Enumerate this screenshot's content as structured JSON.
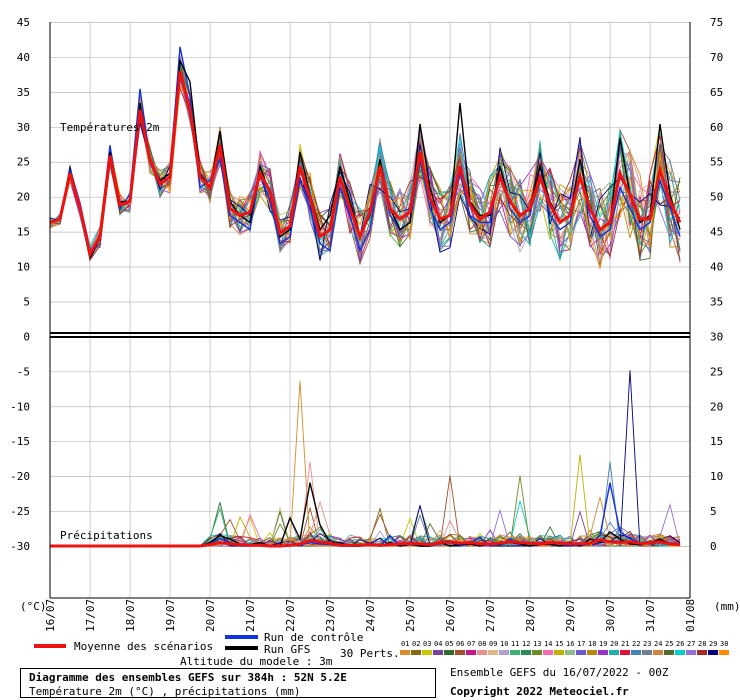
{
  "colors": {
    "mean": "#ee1111",
    "control": "#1133dd",
    "gfs": "#000000",
    "grid": "#bbbbbb",
    "members": [
      "#d98c2b",
      "#8b6914",
      "#c8c800",
      "#7b3fa0",
      "#2f6b2f",
      "#a0522d",
      "#c71585",
      "#e89090",
      "#deb887",
      "#b0a0d0",
      "#3cb371",
      "#2e8b57",
      "#6b8e23",
      "#ff69b4",
      "#c0b000",
      "#8fbc8f",
      "#6a5acd",
      "#b8860b",
      "#9932cc",
      "#20b2aa",
      "#dc143c",
      "#4682b4",
      "#708090",
      "#cd853f",
      "#556b2f",
      "#00ced1",
      "#9370db",
      "#a52a2a",
      "#000080",
      "#ff8c00"
    ]
  },
  "header": {
    "title": "Diagramme des ensembles GEFS sur 384h : 52N 5.2E",
    "subtitle": "Température 2m (°C) , précipitations (mm)",
    "run": "Ensemble GEFS du 16/07/2022 - 00Z",
    "copyright": "Copyright 2022 Meteociel.fr",
    "altitude": "Altitude du modele : 3m"
  },
  "legend": {
    "mean": "Moyenne des scénarios",
    "control": "Run de contrôle",
    "gfs": "Run GFS",
    "perts": "30 Perts.",
    "members": [
      "01",
      "02",
      "03",
      "04",
      "05",
      "06",
      "07",
      "08",
      "09",
      "10",
      "11",
      "12",
      "13",
      "14",
      "15",
      "16",
      "17",
      "18",
      "19",
      "20",
      "21",
      "22",
      "23",
      "24",
      "25",
      "26",
      "27",
      "28",
      "29",
      "30"
    ]
  },
  "chart_data": {
    "type": "line",
    "subplots": [
      {
        "label": "Températures 2m",
        "unit": "(°C)"
      },
      {
        "label": "Précipitations",
        "unit": "(mm)"
      }
    ],
    "x_tick_labels": [
      "16/07",
      "17/07",
      "18/07",
      "19/07",
      "20/07",
      "21/07",
      "22/07",
      "23/07",
      "24/07",
      "25/07",
      "26/07",
      "27/07",
      "28/07",
      "29/07",
      "30/07",
      "31/07",
      "01/08"
    ],
    "left_axis_ticks": [
      "45",
      "40",
      "35",
      "30",
      "25",
      "20",
      "15",
      "10",
      "5",
      "0",
      "-5",
      "-10",
      "-15",
      "-20",
      "-25",
      "-30"
    ],
    "right_axis_ticks": [
      "75",
      "70",
      "65",
      "60",
      "55",
      "50",
      "45",
      "40",
      "35",
      "30",
      "25",
      "20",
      "15",
      "10",
      "5",
      "0"
    ],
    "left_axis_label": "(°C)",
    "right_axis_label": "(mm)",
    "x_unit": "hours",
    "x_step_h": 6,
    "temp_mean": [
      16,
      16.5,
      23,
      18,
      11.5,
      14,
      25.5,
      18.5,
      19,
      32,
      25,
      21.5,
      22.5,
      37.5,
      32,
      22.5,
      21,
      27,
      18,
      17,
      17.5,
      23,
      20.5,
      14.5,
      15.5,
      24,
      19.5,
      14,
      15,
      22.5,
      18,
      14,
      17.5,
      24,
      18,
      16.5,
      17.5,
      26,
      19.5,
      16.5,
      17,
      24,
      18.5,
      16.5,
      17.5,
      22.5,
      19,
      17,
      18,
      22.5,
      18.5,
      16,
      17,
      22.5,
      18,
      15,
      16,
      23,
      20,
      16.5,
      16.5,
      23.5,
      19,
      16
    ],
    "temp_control": [
      16,
      16.5,
      23.5,
      18.5,
      11,
      14.5,
      27,
      18,
      20,
      35,
      25,
      22,
      23,
      41,
      34,
      21,
      22,
      25,
      17,
      16,
      15,
      23,
      19,
      13,
      14,
      22,
      18,
      13,
      12,
      21,
      17,
      12,
      15,
      24,
      17,
      15,
      16,
      25,
      18,
      15,
      16,
      23,
      17,
      16,
      16,
      24,
      18,
      16,
      17,
      24,
      17,
      15,
      16,
      23,
      17,
      14,
      15,
      21,
      18,
      15,
      16,
      22,
      18,
      14
    ],
    "temp_gfs": [
      16,
      16.5,
      23,
      18,
      11,
      14,
      26,
      19,
      19,
      33,
      25,
      22,
      23,
      39,
      36,
      23,
      21,
      29,
      19,
      17,
      16,
      24,
      20,
      14,
      15,
      26,
      20,
      15,
      17,
      24,
      19,
      14,
      17,
      25,
      18,
      15,
      16,
      30,
      21,
      16,
      17,
      33,
      19,
      17,
      17,
      24,
      19,
      17,
      18,
      24,
      19,
      16,
      17,
      25,
      18,
      15,
      16,
      28,
      20,
      16,
      17,
      30,
      20,
      15
    ],
    "temp_members_spread": [
      1,
      1,
      1.5,
      1.5,
      1.5,
      2,
      2,
      2,
      2,
      2.5,
      2.5,
      2.5,
      3,
      3,
      3,
      3,
      3,
      3.5,
      3.5,
      3.5,
      3.5,
      4,
      4,
      4,
      4,
      4,
      4.5,
      4.5,
      4.5,
      4.5,
      5,
      5,
      5,
      5,
      5,
      5.5,
      5.5,
      5.5,
      5.5,
      6,
      6,
      6,
      6,
      6,
      6.5,
      6.5,
      6.5,
      6.5,
      7,
      7,
      7,
      7,
      7,
      7.5,
      7.5,
      7.5,
      7.5,
      8,
      8,
      8,
      8,
      8,
      8.5,
      8.5
    ],
    "precip_mean": [
      0,
      0,
      0,
      0,
      0,
      0,
      0,
      0,
      0,
      0,
      0,
      0,
      0,
      0,
      0,
      0,
      0.2,
      0.5,
      0.3,
      0.2,
      0.1,
      0.1,
      0,
      0,
      0.1,
      0.3,
      0.8,
      0.6,
      0.4,
      0.1,
      0.1,
      0.1,
      0.2,
      0.1,
      0.2,
      0.3,
      0.4,
      0.3,
      0.2,
      0.5,
      0.6,
      0.4,
      0.5,
      0.3,
      0.3,
      0.4,
      0.6,
      0.5,
      0.4,
      0.3,
      0.5,
      0.4,
      0.3,
      0.3,
      0.4,
      0.9,
      0.6,
      0.5,
      0.6,
      0.4,
      0.5,
      0.6,
      0.3,
      0.2
    ],
    "precip_control": [
      0,
      0,
      0,
      0,
      0,
      0,
      0,
      0,
      0,
      0,
      0,
      0,
      0,
      0,
      0,
      0,
      0.5,
      1,
      0.5,
      0,
      0,
      0.3,
      0,
      0,
      0,
      0.2,
      0.5,
      0.3,
      0.2,
      0,
      0,
      0,
      0.3,
      0,
      1.5,
      0,
      0.2,
      0,
      0,
      0.3,
      0.5,
      0,
      0.4,
      0,
      0.3,
      0.2,
      1,
      0.3,
      0,
      0.5,
      0.2,
      0,
      0.2,
      0,
      0.3,
      1.5,
      9,
      2,
      1,
      0.5,
      0.3,
      0.5,
      0.5,
      0.2
    ],
    "precip_gfs": [
      0,
      0,
      0,
      0,
      0,
      0,
      0,
      0,
      0,
      0,
      0,
      0,
      0,
      0,
      0,
      0,
      0.5,
      1.5,
      1,
      0.3,
      0.2,
      0.5,
      0,
      0,
      4,
      1,
      9,
      3,
      0.5,
      0.5,
      0,
      0,
      0.2,
      0,
      0.5,
      0,
      0.3,
      0,
      0,
      0.5,
      0,
      0.2,
      0.3,
      0,
      0.4,
      0.2,
      0.5,
      0.3,
      0,
      0.2,
      0.3,
      0,
      0.5,
      0,
      1,
      0.5,
      2,
      1,
      0.3,
      0.2,
      0.5,
      1,
      0.3,
      0.2
    ],
    "precip_peaks": [
      [
        25,
        23.5
      ],
      [
        26,
        12
      ],
      [
        53,
        13
      ],
      [
        56,
        12
      ],
      [
        58,
        25
      ],
      [
        40,
        10
      ],
      [
        47,
        10
      ]
    ]
  }
}
